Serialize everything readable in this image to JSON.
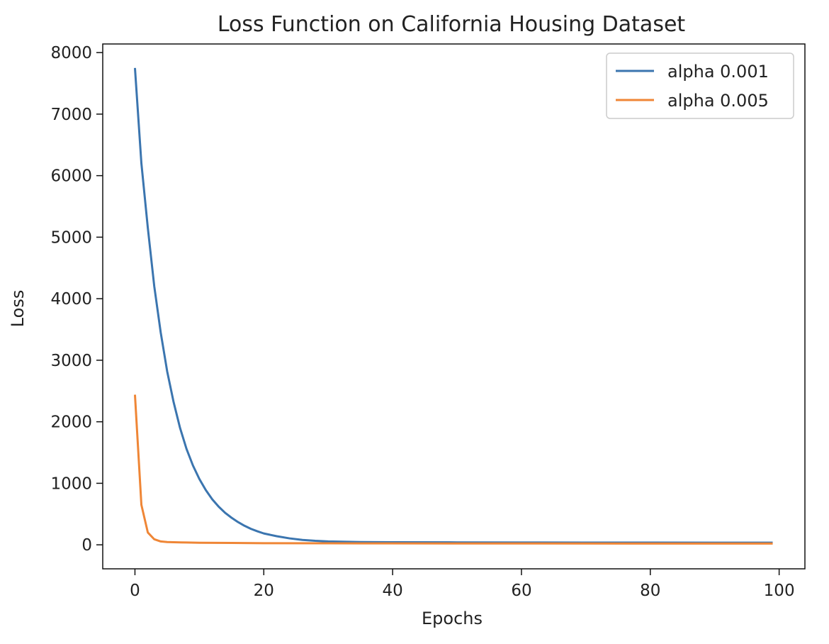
{
  "chart_data": {
    "type": "line",
    "title": "Loss Function on California Housing Dataset",
    "xlabel": "Epochs",
    "ylabel": "Loss",
    "xlim": [
      -5,
      104
    ],
    "ylim": [
      -390,
      8140
    ],
    "xticks": [
      0,
      20,
      40,
      60,
      80,
      100
    ],
    "yticks": [
      0,
      1000,
      2000,
      3000,
      4000,
      5000,
      6000,
      7000,
      8000
    ],
    "grid": false,
    "legend_position": "top-right",
    "series": [
      {
        "name": "alpha 0.001",
        "color": "#3b75af",
        "x": [
          0,
          1,
          2,
          3,
          4,
          5,
          6,
          7,
          8,
          9,
          10,
          11,
          12,
          13,
          14,
          15,
          16,
          17,
          18,
          19,
          20,
          22,
          24,
          26,
          28,
          30,
          35,
          40,
          50,
          60,
          70,
          80,
          90,
          99
        ],
        "y": [
          7750,
          6200,
          5150,
          4200,
          3450,
          2820,
          2320,
          1900,
          1560,
          1290,
          1070,
          890,
          740,
          620,
          520,
          440,
          370,
          310,
          260,
          220,
          185,
          140,
          105,
          80,
          65,
          55,
          45,
          42,
          40,
          38,
          37,
          36,
          35,
          35
        ]
      },
      {
        "name": "alpha 0.005",
        "color": "#ef8636",
        "x": [
          0,
          1,
          2,
          3,
          4,
          5,
          6,
          8,
          10,
          15,
          20,
          30,
          40,
          60,
          80,
          99
        ],
        "y": [
          2440,
          650,
          200,
          90,
          55,
          45,
          42,
          38,
          34,
          30,
          27,
          25,
          23,
          22,
          21,
          20
        ]
      }
    ]
  }
}
